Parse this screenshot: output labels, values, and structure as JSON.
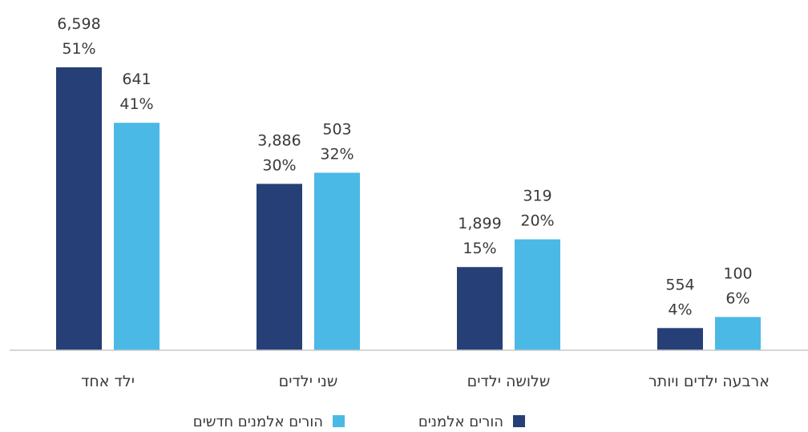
{
  "chart_data": {
    "type": "bar",
    "categories": [
      "ילד אחד",
      "שני ילדים",
      "שלושה ילדים",
      "ארבעה ילדים ויותר"
    ],
    "series": [
      {
        "name": "הורים אלמנים",
        "color": "#263f77",
        "values": [
          6598,
          3886,
          1899,
          554
        ],
        "labels": [
          "6,598",
          "3,886",
          "1,899",
          "554"
        ],
        "percents": [
          51,
          30,
          15,
          4
        ],
        "percent_labels": [
          "51%",
          "30%",
          "15%",
          "4%"
        ]
      },
      {
        "name": "הורים אלמנים חדשים",
        "color": "#4bb9e6",
        "values": [
          641,
          503,
          319,
          100
        ],
        "labels": [
          "641",
          "503",
          "319",
          "100"
        ],
        "percents": [
          41,
          32,
          20,
          6
        ],
        "percent_labels": [
          "41%",
          "32%",
          "20%",
          "6%"
        ]
      }
    ],
    "bar_height_basis": "percent",
    "ylim": [
      0,
      51
    ],
    "grid": false,
    "legend_position": "bottom-center"
  }
}
